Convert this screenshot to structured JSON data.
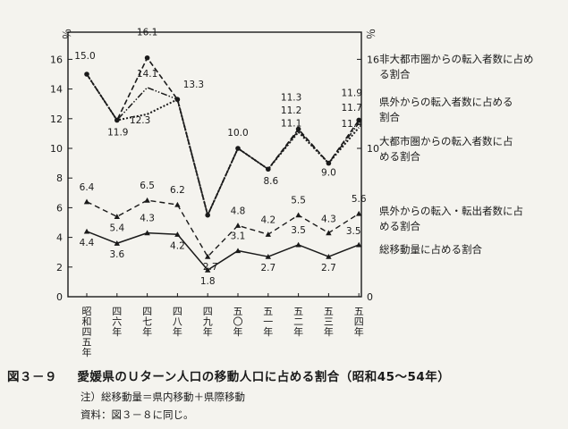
{
  "figure": {
    "caption_number": "図３－９",
    "caption_title": "愛媛県のＵターン人口の移動人口に占める割合（昭和45～54年）",
    "note": "注）総移動量＝県内移動＋県際移動",
    "source": "資料：図３－８に同じ。"
  },
  "chart_data": {
    "type": "line",
    "ylabel_left": "％",
    "ylabel_right": "％",
    "ylim": [
      0,
      17
    ],
    "yticks": [
      0,
      2,
      4,
      6,
      8,
      10,
      12,
      14,
      16
    ],
    "right_ticks": [
      {
        "value": 0,
        "label": "0"
      },
      {
        "value": 10,
        "label": "10"
      },
      {
        "value": 16,
        "label": "16"
      }
    ],
    "categories": [
      "昭和四五年",
      "四六年",
      "四七年",
      "四八年",
      "四九年",
      "五〇年",
      "五一年",
      "五二年",
      "五三年",
      "五四年"
    ],
    "grid": false,
    "legend": "right, labels beside line ends",
    "series": [
      {
        "name": "非大都市圏からの転入者数に占める割合",
        "color": "#1a1a1a",
        "values": [
          15.0,
          11.9,
          16.1,
          13.3,
          5.5,
          10.0,
          8.6,
          11.3,
          9.0,
          11.9
        ]
      },
      {
        "name": "県外からの転入者数に占める割合",
        "color": "#1a1a1a",
        "values": [
          15.0,
          11.9,
          14.1,
          13.3,
          5.5,
          10.0,
          8.6,
          11.2,
          9.0,
          11.7
        ]
      },
      {
        "name": "大都市圏からの転入者数に占める割合",
        "color": "#1a1a1a",
        "values": [
          15.0,
          11.9,
          12.3,
          13.3,
          5.5,
          10.0,
          8.6,
          11.1,
          9.0,
          11.4
        ]
      },
      {
        "name": "県外からの転入・転出者数に占める割合",
        "color": "#1a1a1a",
        "values": [
          6.4,
          5.4,
          6.5,
          6.2,
          2.7,
          4.8,
          4.2,
          5.5,
          4.3,
          5.6
        ]
      },
      {
        "name": "総移動量に占める割合",
        "color": "#1a1a1a",
        "values": [
          4.4,
          3.6,
          4.3,
          4.2,
          1.8,
          3.1,
          2.7,
          3.5,
          2.7,
          3.5
        ]
      }
    ],
    "data_labels": [
      {
        "text": "15.0",
        "x": 0,
        "y": 15.0
      },
      {
        "text": "11.9",
        "x": 1,
        "y": 11.9
      },
      {
        "text": "16.1",
        "x": 2,
        "y": 16.1
      },
      {
        "text": "14.1",
        "x": 2,
        "y": 14.1
      },
      {
        "text": "12.3",
        "x": 2,
        "y": 12.3
      },
      {
        "text": "13.3",
        "x": 3,
        "y": 13.3
      },
      {
        "text": "10.0",
        "x": 5,
        "y": 10.0
      },
      {
        "text": "8.6",
        "x": 6,
        "y": 8.6
      },
      {
        "text": "11.3",
        "x": 7,
        "y": 11.3
      },
      {
        "text": "11.2",
        "x": 7,
        "y": 11.2
      },
      {
        "text": "11.1",
        "x": 7,
        "y": 11.1
      },
      {
        "text": "9.0",
        "x": 8,
        "y": 9.0
      },
      {
        "text": "11.9",
        "x": 9,
        "y": 11.9
      },
      {
        "text": "11.7",
        "x": 9,
        "y": 11.7
      },
      {
        "text": "11.4",
        "x": 9,
        "y": 11.4
      },
      {
        "text": "6.4",
        "x": 0,
        "y": 6.4
      },
      {
        "text": "5.4",
        "x": 1,
        "y": 5.4
      },
      {
        "text": "6.5",
        "x": 2,
        "y": 6.5
      },
      {
        "text": "6.2",
        "x": 3,
        "y": 6.2
      },
      {
        "text": "2.7",
        "x": 4,
        "y": 2.7
      },
      {
        "text": "4.8",
        "x": 5,
        "y": 4.8
      },
      {
        "text": "4.2",
        "x": 6,
        "y": 4.2
      },
      {
        "text": "5.5",
        "x": 7,
        "y": 5.5
      },
      {
        "text": "5.6",
        "x": 9,
        "y": 5.6
      },
      {
        "text": "4.4",
        "x": 0,
        "y": 4.4
      },
      {
        "text": "3.6",
        "x": 1,
        "y": 3.6
      },
      {
        "text": "4.3",
        "x": 2,
        "y": 4.3
      },
      {
        "text": "4.2",
        "x": 3,
        "y": 4.2
      },
      {
        "text": "1.8",
        "x": 4,
        "y": 1.8
      },
      {
        "text": "3.1",
        "x": 5,
        "y": 3.1
      },
      {
        "text": "2.7",
        "x": 6,
        "y": 2.7
      },
      {
        "text": "3.5",
        "x": 7,
        "y": 3.5
      },
      {
        "text": "2.7",
        "x": 8,
        "y": 2.7
      },
      {
        "text": "4.3",
        "x": 8,
        "y": 4.3
      },
      {
        "text": "3.5",
        "x": 9,
        "y": 3.5
      }
    ]
  }
}
